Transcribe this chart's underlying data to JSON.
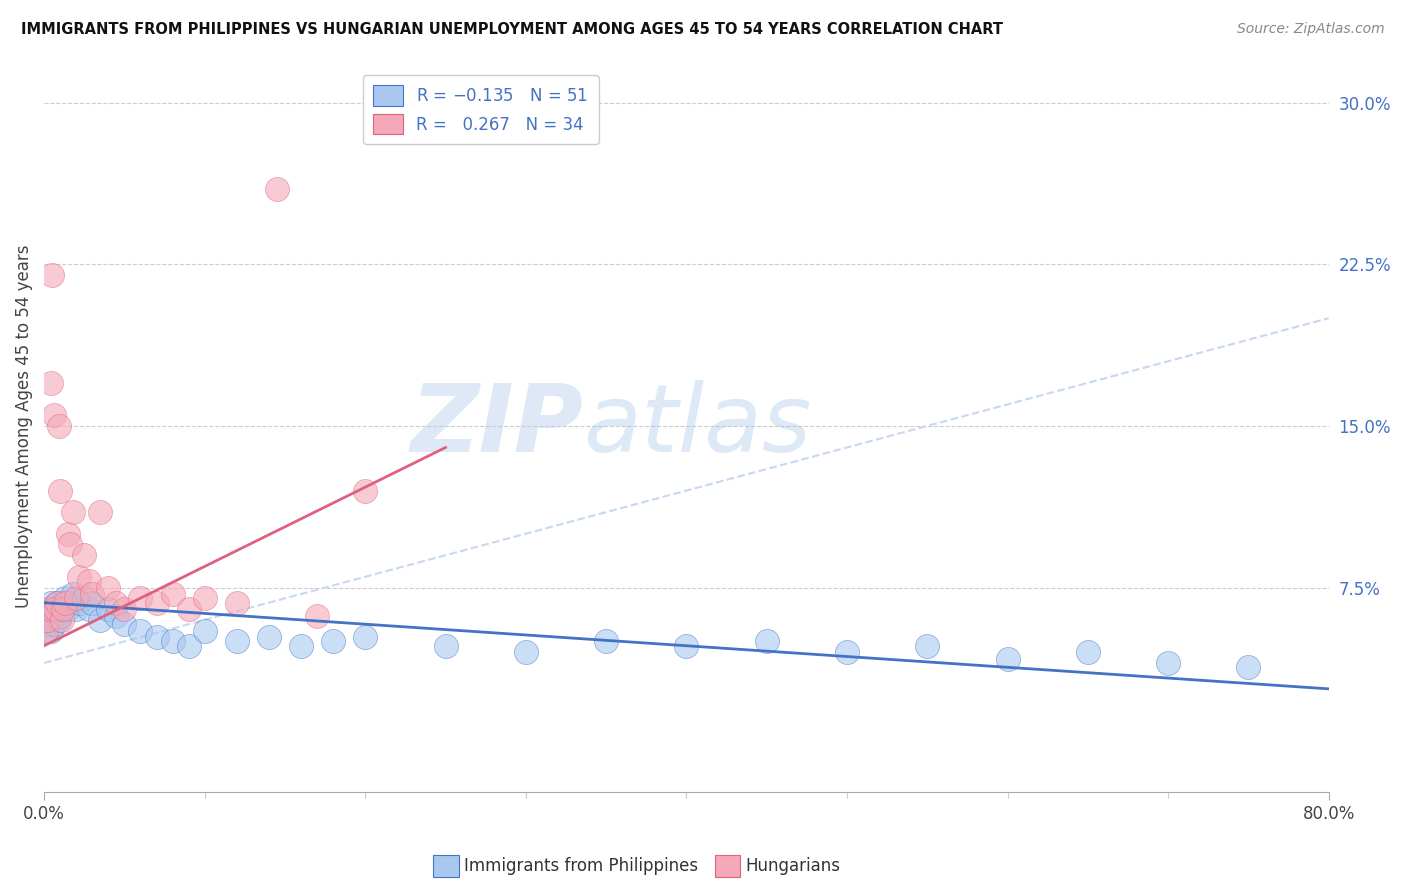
{
  "title": "IMMIGRANTS FROM PHILIPPINES VS HUNGARIAN UNEMPLOYMENT AMONG AGES 45 TO 54 YEARS CORRELATION CHART",
  "source": "Source: ZipAtlas.com",
  "ylabel_label": "Unemployment Among Ages 45 to 54 years",
  "xlim": [
    0.0,
    0.8
  ],
  "ylim": [
    -0.02,
    0.32
  ],
  "blue_color": "#A8C8F0",
  "pink_color": "#F4A8B8",
  "line_blue": "#4472C4",
  "line_pink": "#E06080",
  "line_dashed_color": "#C8D8F0",
  "background": "#FFFFFF",
  "grid_color": "#CCCCCC",
  "blue_scatter_x": [
    0.001,
    0.002,
    0.002,
    0.003,
    0.003,
    0.004,
    0.004,
    0.005,
    0.005,
    0.006,
    0.006,
    0.007,
    0.008,
    0.009,
    0.01,
    0.011,
    0.012,
    0.013,
    0.015,
    0.016,
    0.018,
    0.02,
    0.022,
    0.025,
    0.028,
    0.03,
    0.035,
    0.04,
    0.045,
    0.05,
    0.06,
    0.07,
    0.08,
    0.09,
    0.1,
    0.12,
    0.14,
    0.16,
    0.18,
    0.2,
    0.25,
    0.3,
    0.35,
    0.4,
    0.45,
    0.5,
    0.55,
    0.6,
    0.65,
    0.7,
    0.75
  ],
  "blue_scatter_y": [
    0.055,
    0.058,
    0.06,
    0.062,
    0.065,
    0.055,
    0.068,
    0.06,
    0.065,
    0.058,
    0.062,
    0.065,
    0.068,
    0.06,
    0.062,
    0.065,
    0.068,
    0.07,
    0.065,
    0.068,
    0.072,
    0.065,
    0.068,
    0.07,
    0.065,
    0.068,
    0.06,
    0.065,
    0.062,
    0.058,
    0.055,
    0.052,
    0.05,
    0.048,
    0.055,
    0.05,
    0.052,
    0.048,
    0.05,
    0.052,
    0.048,
    0.045,
    0.05,
    0.048,
    0.05,
    0.045,
    0.048,
    0.042,
    0.045,
    0.04,
    0.038
  ],
  "pink_scatter_x": [
    0.001,
    0.002,
    0.003,
    0.004,
    0.005,
    0.006,
    0.007,
    0.008,
    0.009,
    0.01,
    0.011,
    0.012,
    0.013,
    0.015,
    0.016,
    0.018,
    0.02,
    0.022,
    0.025,
    0.028,
    0.03,
    0.035,
    0.04,
    0.045,
    0.05,
    0.06,
    0.07,
    0.08,
    0.09,
    0.1,
    0.12,
    0.145,
    0.17,
    0.2
  ],
  "pink_scatter_y": [
    0.055,
    0.06,
    0.065,
    0.17,
    0.22,
    0.155,
    0.065,
    0.068,
    0.15,
    0.12,
    0.06,
    0.065,
    0.068,
    0.1,
    0.095,
    0.11,
    0.07,
    0.08,
    0.09,
    0.078,
    0.072,
    0.11,
    0.075,
    0.068,
    0.065,
    0.07,
    0.068,
    0.072,
    0.065,
    0.07,
    0.068,
    0.26,
    0.062,
    0.12
  ],
  "blue_trend_x": [
    0.0,
    0.8
  ],
  "blue_trend_y": [
    0.068,
    0.028
  ],
  "pink_trend_x": [
    0.0,
    0.25
  ],
  "pink_trend_y": [
    0.048,
    0.14
  ],
  "dashed_trend_x": [
    0.0,
    0.8
  ],
  "dashed_trend_y": [
    0.04,
    0.2
  ]
}
